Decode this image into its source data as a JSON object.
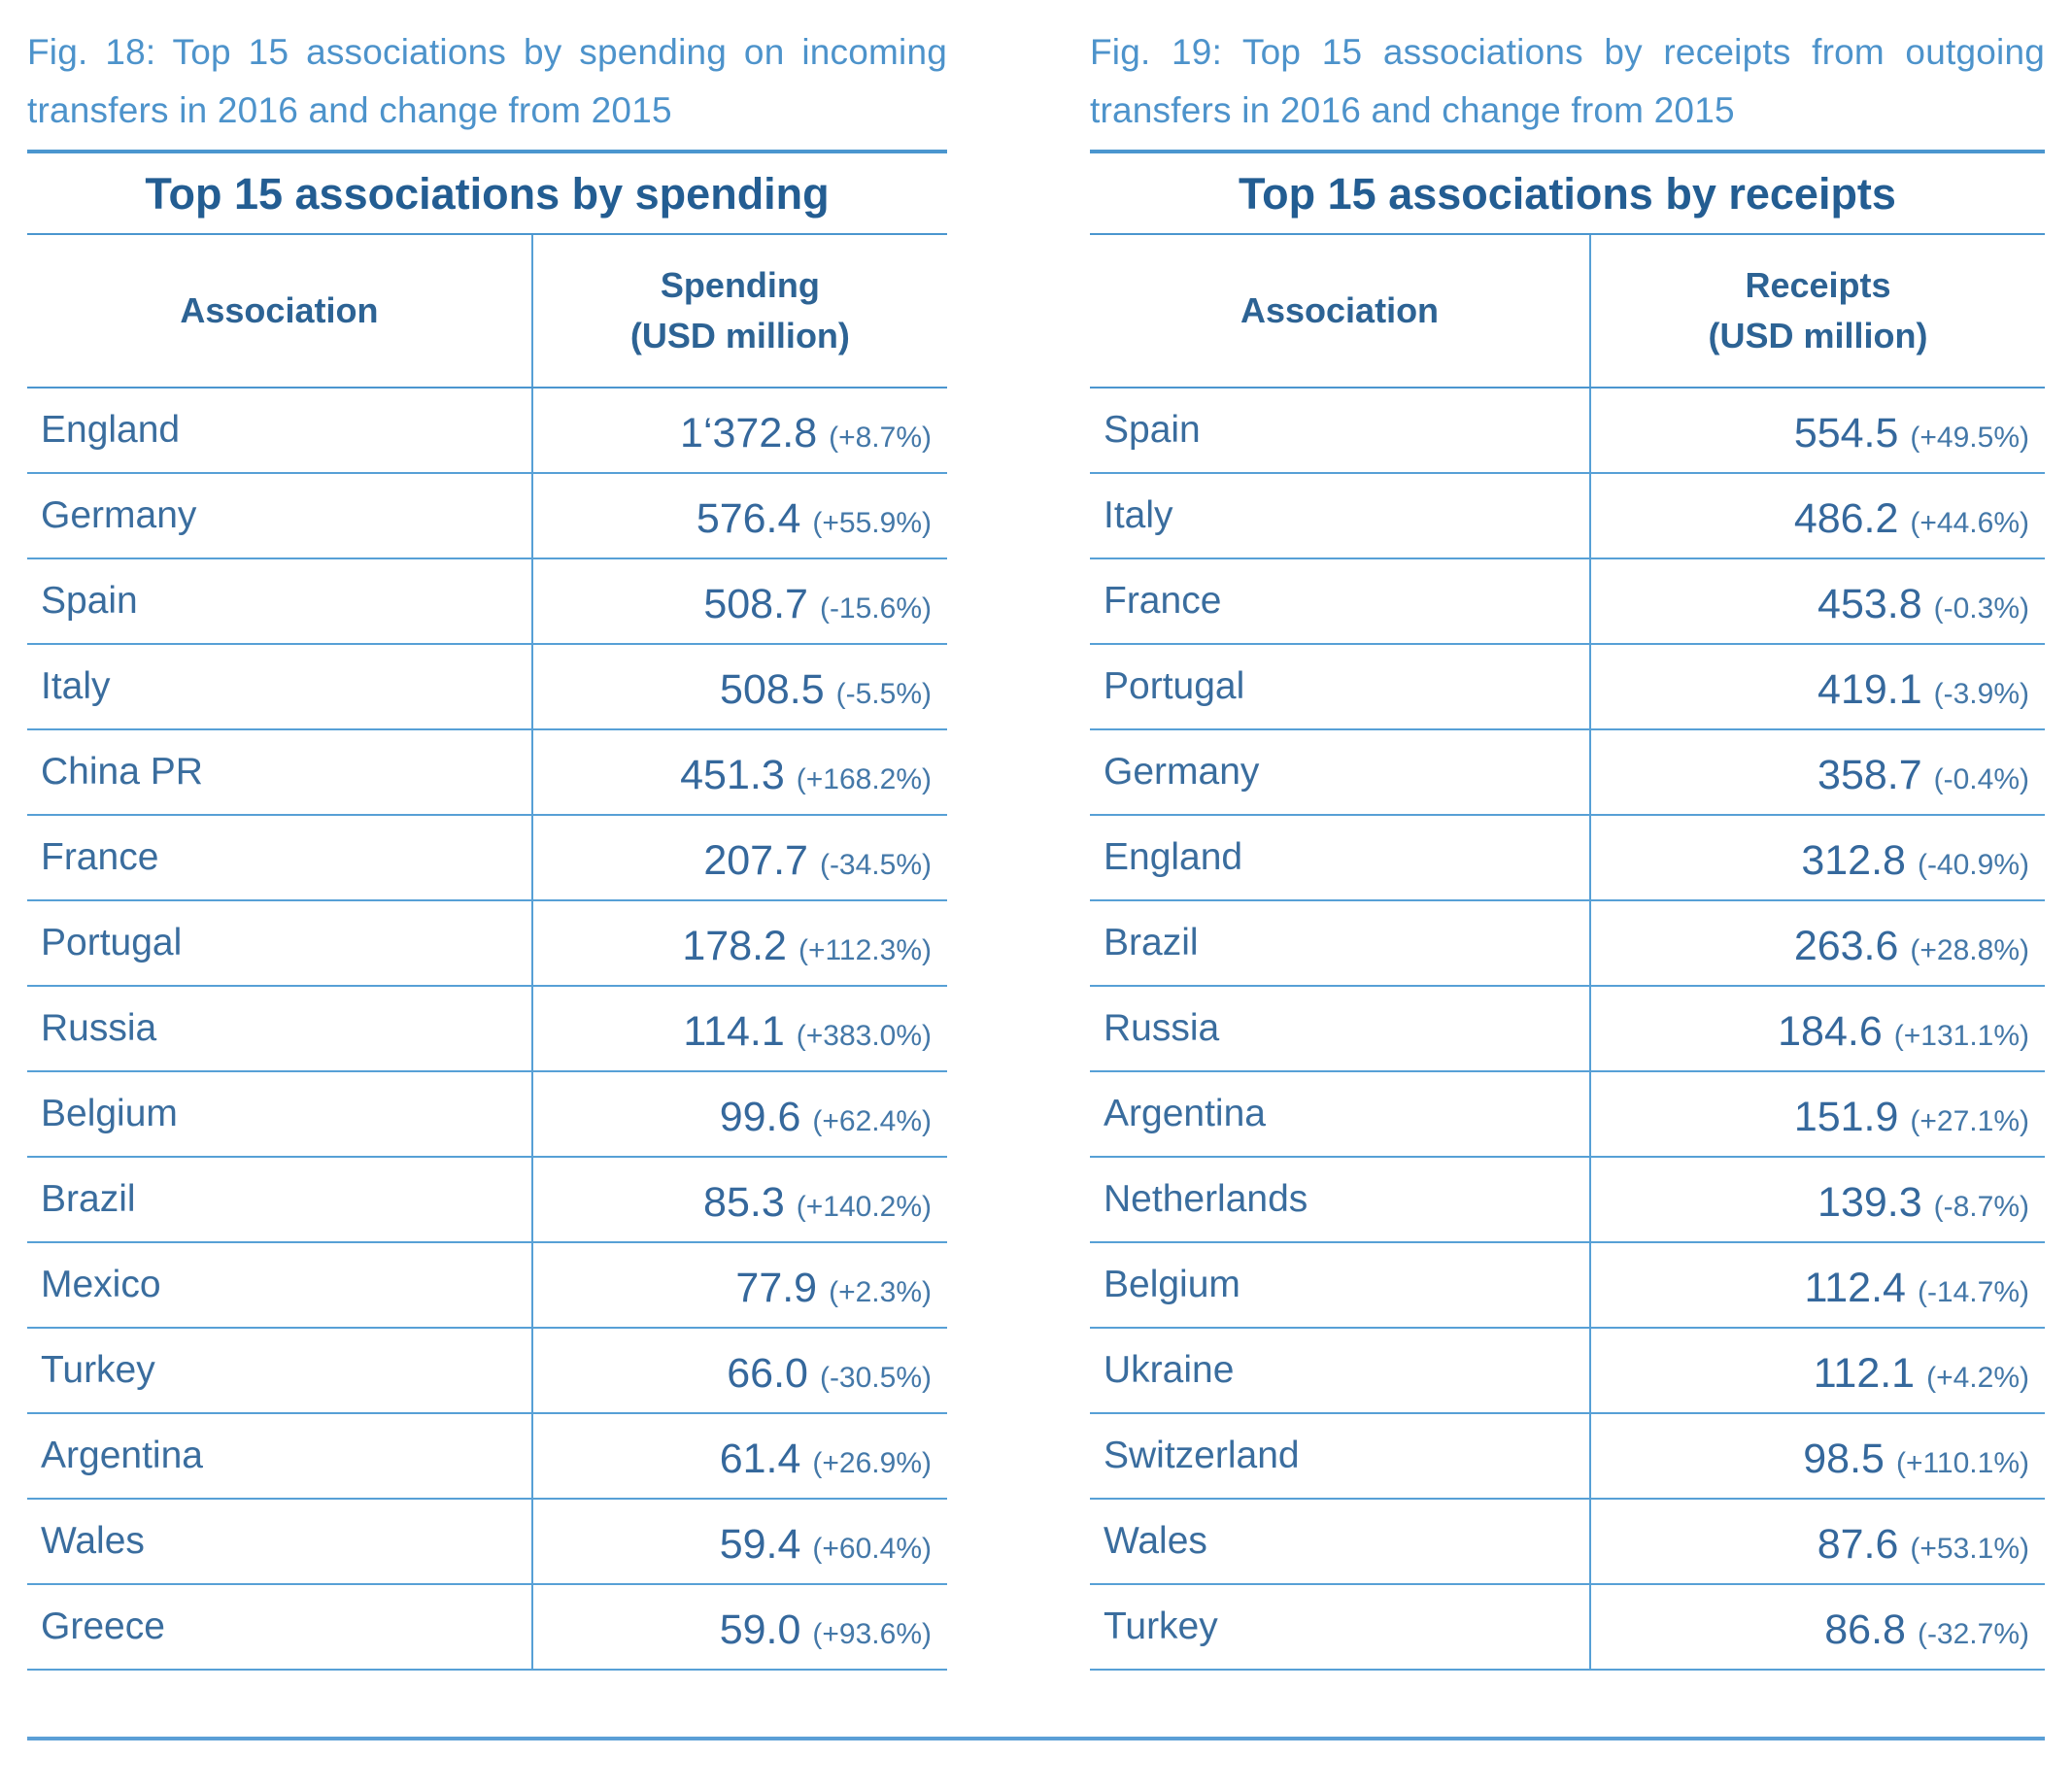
{
  "page": {
    "figures": [
      {
        "caption_line1": "Fig. 18: Top 15 associations by spending on incoming",
        "caption_line2": "transfers in 2016 and change from 2015",
        "table_title": "Top 15 associations by spending",
        "header": {
          "association": "Association",
          "value_line1": "Spending",
          "value_line2": "(USD million)"
        },
        "rows": [
          {
            "association": "England",
            "value": "1‘372.8",
            "change": "(+8.7%)"
          },
          {
            "association": "Germany",
            "value": "576.4",
            "change": "(+55.9%)"
          },
          {
            "association": "Spain",
            "value": "508.7",
            "change": "(-15.6%)"
          },
          {
            "association": "Italy",
            "value": "508.5",
            "change": "(-5.5%)"
          },
          {
            "association": "China PR",
            "value": "451.3",
            "change": "(+168.2%)"
          },
          {
            "association": "France",
            "value": "207.7",
            "change": "(-34.5%)"
          },
          {
            "association": "Portugal",
            "value": "178.2",
            "change": "(+112.3%)"
          },
          {
            "association": "Russia",
            "value": "114.1",
            "change": "(+383.0%)"
          },
          {
            "association": "Belgium",
            "value": "99.6",
            "change": "(+62.4%)"
          },
          {
            "association": "Brazil",
            "value": "85.3",
            "change": "(+140.2%)"
          },
          {
            "association": "Mexico",
            "value": "77.9",
            "change": "(+2.3%)"
          },
          {
            "association": "Turkey",
            "value": "66.0",
            "change": "(-30.5%)"
          },
          {
            "association": "Argentina",
            "value": "61.4",
            "change": "(+26.9%)"
          },
          {
            "association": "Wales",
            "value": "59.4",
            "change": "(+60.4%)"
          },
          {
            "association": "Greece",
            "value": "59.0",
            "change": "(+93.6%)"
          }
        ]
      },
      {
        "caption_line1": "Fig. 19: Top 15 associations by receipts from outgoing",
        "caption_line2": "transfers in 2016 and change from 2015",
        "table_title": "Top 15 associations by receipts",
        "header": {
          "association": "Association",
          "value_line1": "Receipts",
          "value_line2": "(USD million)"
        },
        "rows": [
          {
            "association": "Spain",
            "value": "554.5",
            "change": "(+49.5%)"
          },
          {
            "association": "Italy",
            "value": "486.2",
            "change": "(+44.6%)"
          },
          {
            "association": "France",
            "value": "453.8",
            "change": "(-0.3%)"
          },
          {
            "association": "Portugal",
            "value": "419.1",
            "change": "(-3.9%)"
          },
          {
            "association": "Germany",
            "value": "358.7",
            "change": "(-0.4%)"
          },
          {
            "association": "England",
            "value": "312.8",
            "change": "(-40.9%)"
          },
          {
            "association": "Brazil",
            "value": "263.6",
            "change": "(+28.8%)"
          },
          {
            "association": "Russia",
            "value": "184.6",
            "change": "(+131.1%)"
          },
          {
            "association": "Argentina",
            "value": "151.9",
            "change": "(+27.1%)"
          },
          {
            "association": "Netherlands",
            "value": "139.3",
            "change": "(-8.7%)"
          },
          {
            "association": "Belgium",
            "value": "112.4",
            "change": "(-14.7%)"
          },
          {
            "association": "Ukraine",
            "value": "112.1",
            "change": "(+4.2%)"
          },
          {
            "association": "Switzerland",
            "value": "98.5",
            "change": "(+110.1%)"
          },
          {
            "association": "Wales",
            "value": "87.6",
            "change": "(+53.1%)"
          },
          {
            "association": "Turkey",
            "value": "86.8",
            "change": "(-32.7%)"
          }
        ]
      }
    ]
  }
}
